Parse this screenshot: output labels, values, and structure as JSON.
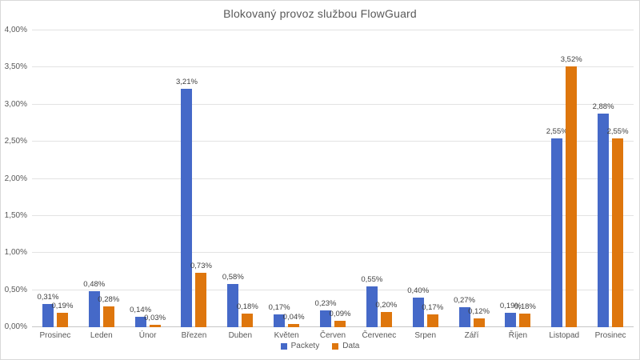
{
  "chart": {
    "title": "Blokovaný provoz službou FlowGuard",
    "text_color": "#595959",
    "data_label_color": "#3f3f3f",
    "gridline_color": "#e3e3e3",
    "axis_line_color": "#c6c6c6"
  },
  "chart_data": {
    "type": "bar",
    "title": "Blokovaný provoz službou FlowGuard",
    "categories": [
      "Prosinec",
      "Leden",
      "Únor",
      "Březen",
      "Duben",
      "Květen",
      "Červen",
      "Červenec",
      "Srpen",
      "Září",
      "Říjen",
      "Listopad",
      "Prosinec"
    ],
    "series": [
      {
        "name": "Packety",
        "color": "#4569C8",
        "values": [
          0.31,
          0.48,
          0.14,
          3.21,
          0.58,
          0.17,
          0.23,
          0.55,
          0.4,
          0.27,
          0.19,
          2.55,
          2.88
        ],
        "labels": [
          "0,31%",
          "0,48%",
          "0,14%",
          "3,21%",
          "0,58%",
          "0,17%",
          "0,23%",
          "0,55%",
          "0,40%",
          "0,27%",
          "0,19%",
          "2,55%",
          "2,88%"
        ]
      },
      {
        "name": "Data",
        "color": "#DE760D",
        "values": [
          0.19,
          0.28,
          0.03,
          0.73,
          0.18,
          0.04,
          0.09,
          0.2,
          0.17,
          0.12,
          0.18,
          3.52,
          2.55
        ],
        "labels": [
          "0,19%",
          "0,28%",
          "0,03%",
          "0,73%",
          "0,18%",
          "0,04%",
          "0,09%",
          "0,20%",
          "0,17%",
          "0,12%",
          "0,18%",
          "3,52%",
          "2,55%"
        ]
      }
    ],
    "ylim": [
      0,
      4
    ],
    "ytick_values": [
      0,
      0.5,
      1,
      1.5,
      2,
      2.5,
      3,
      3.5,
      4
    ],
    "ytick_labels": [
      "0,00%",
      "0,50%",
      "1,00%",
      "1,50%",
      "2,00%",
      "2,50%",
      "3,00%",
      "3,50%",
      "4,00%"
    ],
    "grid": true,
    "legend_position": "bottom"
  }
}
